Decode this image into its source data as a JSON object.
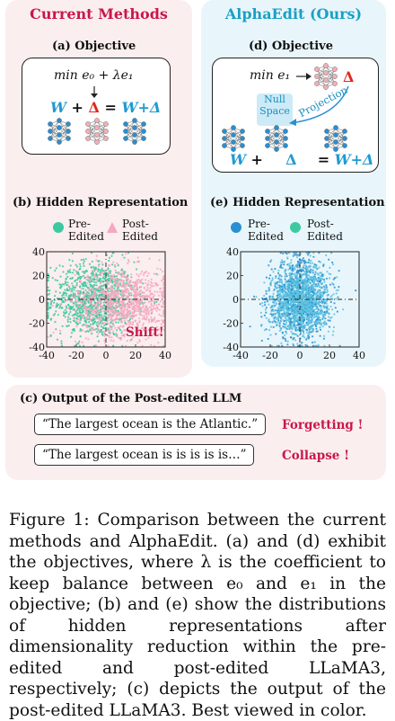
{
  "left_panel": {
    "title": "Current Methods",
    "objective_heading": "(a) Objective",
    "objective_formula": "min  e₀ + λe₁",
    "update_w": "W",
    "update_plus": "+",
    "update_delta": "Δ",
    "update_eq": "=",
    "update_result": "W+Δ",
    "hidden_heading": "(b) Hidden Representation",
    "legend_pre": "Pre-\nEdited",
    "legend_post": "Post-\nEdited",
    "shift_label": "Shift!"
  },
  "right_panel": {
    "title": "AlphaEdit (Ours)",
    "objective_heading": "(d) Objective",
    "objective_formula": "min  e₁",
    "arrow_delta": "Δ",
    "null_space": "Null\nSpace",
    "projection": "Projection",
    "update_w": "W",
    "update_plus": "+",
    "update_delta": "Δ",
    "update_eq": "=",
    "update_result": "W+Δ",
    "hidden_heading": "(e) Hidden Representation",
    "legend_pre": "Pre-\nEdited",
    "legend_post": "Post-\nEdited"
  },
  "output_panel": {
    "heading": "(c) Output of the Post-edited LLM",
    "quote1": "“The largest ocean is the Atlantic.”",
    "label1": "Forgetting !",
    "quote2": "“The largest ocean is is is is is…”",
    "label2": "Collapse !"
  },
  "caption": {
    "text": "Figure 1: Comparison between the current methods and AlphaEdit. (a) and (d) exhibit the objectives, where λ is the coefficient to keep balance between e₀ and e₁ in the objective; (b) and (e) show the distributions of hidden representations after dimensionality reduction within the pre-edited and post-edited LLaMA3, respectively; (c) depicts the output of the post-edited LLaMA3. Best viewed in color."
  },
  "colors": {
    "green": "#3cc9a0",
    "pink": "#f5a8c0",
    "blue": "#2a8fd0",
    "light_blue": "#5cc4e0",
    "red_title": "#c8174a",
    "blue_title": "#1a9fc4"
  },
  "chart_data": [
    {
      "type": "scatter",
      "title": "(b) Hidden Representation",
      "x_ticks": [
        "-40",
        "-20",
        "0",
        "20",
        "40"
      ],
      "y_ticks": [
        "40",
        "20",
        "0",
        "-20",
        "-40"
      ],
      "xlim": [
        -40,
        40
      ],
      "ylim": [
        -40,
        40
      ],
      "series": [
        {
          "name": "Pre-Edited",
          "color": "#3cc9a0",
          "center": [
            -8,
            0
          ],
          "spread": [
            14,
            16
          ],
          "count": 1100
        },
        {
          "name": "Post-Edited",
          "color": "#f5a8c0",
          "center": [
            12,
            -2
          ],
          "spread": [
            16,
            14
          ],
          "count": 1100
        }
      ],
      "annotation": "Shift!"
    },
    {
      "type": "scatter",
      "title": "(e) Hidden Representation",
      "x_ticks": [
        "-40",
        "-20",
        "0",
        "20",
        "40"
      ],
      "y_ticks": [
        "40",
        "20",
        "0",
        "-20",
        "-40"
      ],
      "xlim": [
        -40,
        40
      ],
      "ylim": [
        -40,
        40
      ],
      "series": [
        {
          "name": "Pre-Edited",
          "color": "#2a8fd0",
          "center": [
            0,
            0
          ],
          "spread": [
            10,
            16
          ],
          "count": 1000
        },
        {
          "name": "Post-Edited",
          "color": "#5cc4e0",
          "center": [
            0,
            0
          ],
          "spread": [
            10,
            16
          ],
          "count": 1000
        }
      ]
    }
  ]
}
